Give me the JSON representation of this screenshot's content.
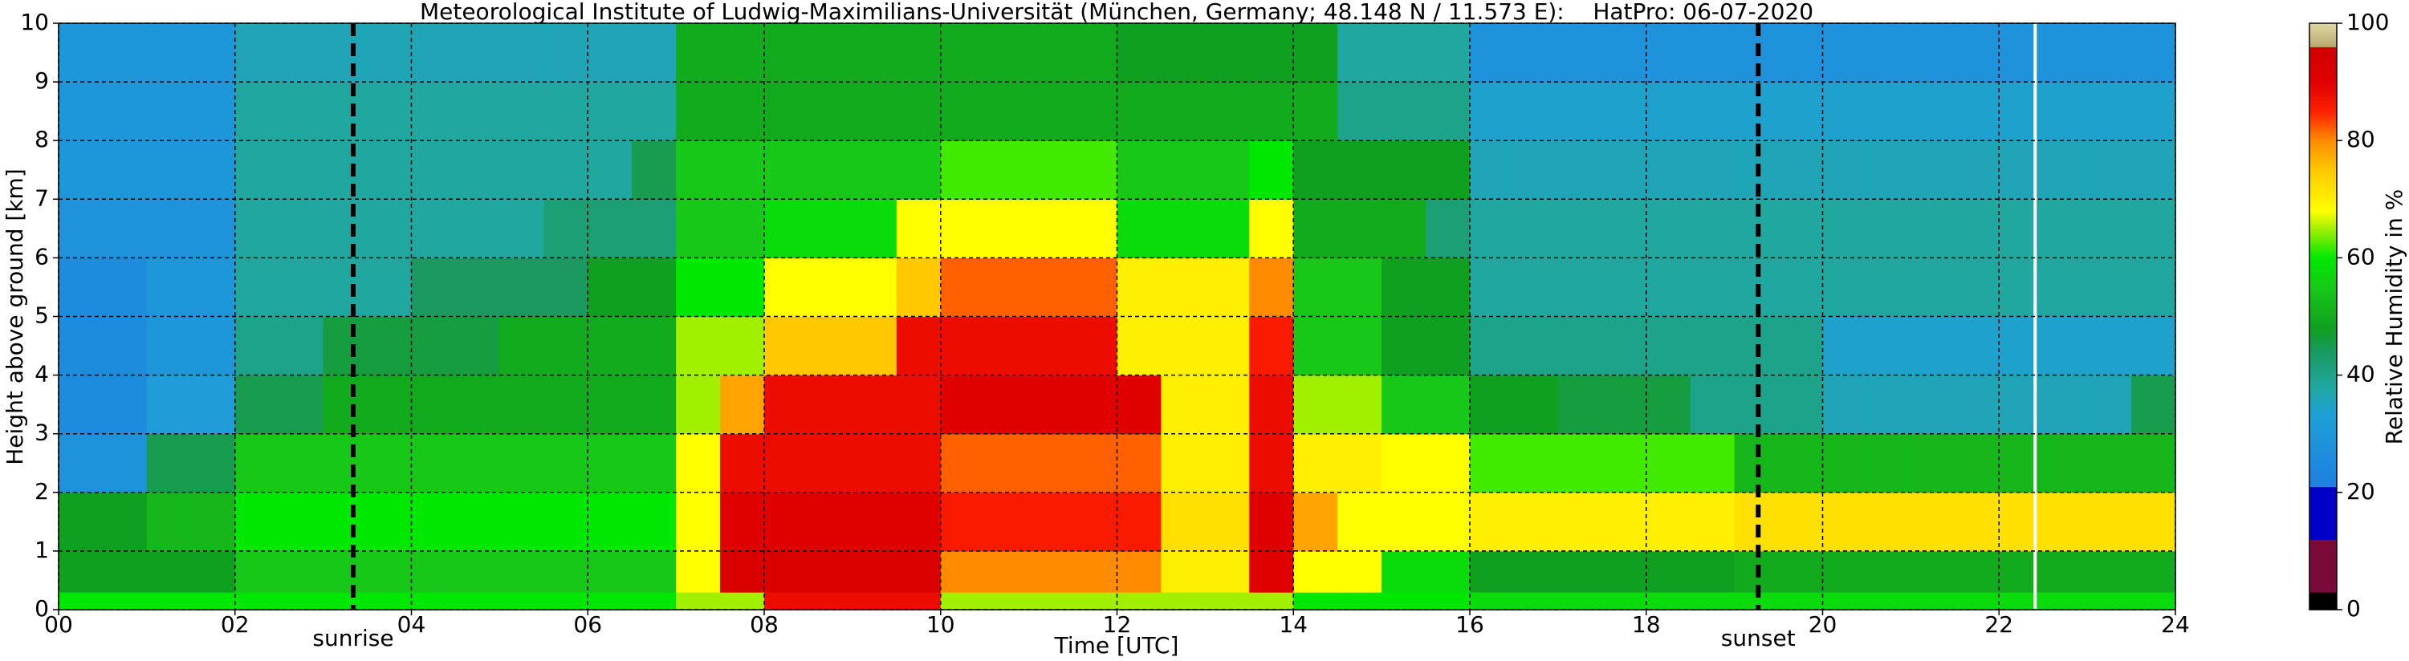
{
  "chart_data": {
    "type": "heatmap",
    "title": "Meteorological Institute of Ludwig-Maximilians-Universität (München, Germany; 48.148 N / 11.573 E):    HatPro: 06-07-2020",
    "xlabel": "Time [UTC]",
    "ylabel": "Height above ground [km]",
    "colorbar_label": "Relative Humidity in %",
    "xlim": [
      0,
      24
    ],
    "ylim": [
      0,
      10
    ],
    "clim": [
      0,
      100
    ],
    "xticks": [
      {
        "value": 0,
        "label": "00"
      },
      {
        "value": 2,
        "label": "02"
      },
      {
        "value": 4,
        "label": "04"
      },
      {
        "value": 6,
        "label": "06"
      },
      {
        "value": 8,
        "label": "08"
      },
      10,
      12,
      14,
      16,
      18,
      20,
      22,
      24
    ],
    "yticks": [
      0,
      1,
      2,
      3,
      4,
      5,
      6,
      7,
      8,
      9,
      10
    ],
    "cticks": [
      0,
      20,
      40,
      60,
      80,
      100
    ],
    "grid": true,
    "annotations": [
      {
        "text": "sunrise",
        "x": 3.34
      },
      {
        "text": "sunset",
        "x": 19.27
      }
    ],
    "gaps": [
      22.41
    ],
    "colorscale": [
      [
        0,
        "#000000"
      ],
      [
        3,
        "#000000"
      ],
      [
        3.01,
        "#7a0a3a"
      ],
      [
        12,
        "#7a0a3a"
      ],
      [
        12.01,
        "#0000c8"
      ],
      [
        21,
        "#0000c8"
      ],
      [
        21.01,
        "#1e7ee0"
      ],
      [
        33,
        "#1ea0d8"
      ],
      [
        38,
        "#20a8a0"
      ],
      [
        44,
        "#1a9a60"
      ],
      [
        48,
        "#10a020"
      ],
      [
        55,
        "#18c818"
      ],
      [
        60,
        "#00e800"
      ],
      [
        65,
        "#a0f000"
      ],
      [
        68,
        "#ffff00"
      ],
      [
        75,
        "#ffc800"
      ],
      [
        80,
        "#ff8c00"
      ],
      [
        85,
        "#ff2000"
      ],
      [
        90,
        "#e00000"
      ],
      [
        96,
        "#d00000"
      ],
      [
        96.01,
        "#b8a870"
      ],
      [
        100,
        "#e0d8a0"
      ]
    ],
    "x_bins": [
      0,
      0.5,
      1,
      1.5,
      2,
      2.5,
      3,
      3.5,
      4,
      4.5,
      5,
      5.5,
      6,
      6.5,
      7,
      7.5,
      8,
      8.5,
      9,
      9.5,
      10,
      10.5,
      11,
      11.5,
      12,
      12.5,
      13,
      13.5,
      14,
      14.5,
      15,
      15.5,
      16,
      16.5,
      17,
      17.5,
      18,
      18.5,
      19,
      19.5,
      20,
      20.5,
      21,
      21.5,
      22,
      22.5,
      23,
      23.5,
      24
    ],
    "y_bins": [
      0,
      0.3,
      1,
      2,
      3,
      4,
      5,
      6,
      7,
      8,
      9,
      10
    ],
    "z": [
      [
        60,
        60,
        60,
        60,
        60,
        60,
        60,
        60,
        60,
        60,
        60,
        60,
        60,
        60,
        65,
        65,
        88,
        88,
        88,
        88,
        65,
        65,
        65,
        65,
        65,
        65,
        65,
        65,
        60,
        60,
        60,
        60,
        58,
        58,
        58,
        58,
        58,
        58,
        58,
        58,
        58,
        58,
        58,
        58,
        58,
        58,
        58,
        58
      ],
      [
        48,
        48,
        48,
        48,
        55,
        55,
        55,
        55,
        55,
        55,
        55,
        55,
        55,
        55,
        68,
        92,
        92,
        92,
        92,
        92,
        80,
        80,
        80,
        80,
        80,
        70,
        70,
        90,
        68,
        68,
        58,
        58,
        48,
        48,
        48,
        48,
        48,
        48,
        50,
        50,
        50,
        50,
        50,
        50,
        50,
        50,
        50,
        50
      ],
      [
        48,
        48,
        52,
        52,
        60,
        60,
        60,
        60,
        60,
        60,
        60,
        60,
        60,
        60,
        68,
        90,
        90,
        90,
        90,
        90,
        86,
        86,
        86,
        86,
        86,
        72,
        72,
        90,
        78,
        68,
        68,
        68,
        70,
        70,
        70,
        70,
        70,
        70,
        72,
        72,
        72,
        72,
        72,
        72,
        72,
        72,
        72,
        72
      ],
      [
        28,
        28,
        45,
        45,
        55,
        55,
        55,
        55,
        55,
        55,
        55,
        55,
        55,
        55,
        68,
        88,
        88,
        88,
        88,
        88,
        82,
        82,
        82,
        82,
        82,
        70,
        70,
        88,
        70,
        70,
        68,
        68,
        62,
        62,
        62,
        62,
        62,
        62,
        52,
        52,
        52,
        52,
        52,
        52,
        52,
        52,
        52,
        52
      ],
      [
        26,
        26,
        32,
        32,
        45,
        45,
        50,
        50,
        50,
        50,
        50,
        50,
        50,
        50,
        65,
        78,
        88,
        88,
        88,
        88,
        90,
        90,
        90,
        90,
        90,
        70,
        70,
        88,
        65,
        65,
        55,
        55,
        48,
        48,
        46,
        46,
        46,
        40,
        40,
        40,
        36,
        36,
        36,
        36,
        36,
        36,
        36,
        45
      ],
      [
        26,
        26,
        30,
        30,
        40,
        40,
        46,
        46,
        46,
        46,
        50,
        50,
        50,
        50,
        65,
        65,
        75,
        75,
        75,
        88,
        88,
        88,
        88,
        88,
        70,
        70,
        70,
        86,
        55,
        55,
        48,
        48,
        40,
        40,
        40,
        40,
        40,
        40,
        40,
        40,
        34,
        34,
        34,
        34,
        34,
        34,
        34,
        34
      ],
      [
        26,
        26,
        30,
        30,
        38,
        38,
        38,
        38,
        44,
        44,
        44,
        44,
        48,
        48,
        60,
        60,
        68,
        68,
        68,
        75,
        82,
        82,
        82,
        82,
        70,
        70,
        70,
        80,
        55,
        55,
        48,
        48,
        38,
        38,
        38,
        38,
        38,
        38,
        38,
        38,
        38,
        38,
        38,
        38,
        38,
        38,
        38,
        38
      ],
      [
        28,
        28,
        28,
        28,
        38,
        38,
        38,
        38,
        38,
        38,
        38,
        42,
        42,
        42,
        55,
        55,
        58,
        58,
        58,
        68,
        68,
        68,
        68,
        68,
        58,
        58,
        58,
        68,
        50,
        50,
        50,
        42,
        38,
        38,
        38,
        38,
        38,
        38,
        38,
        38,
        38,
        38,
        38,
        38,
        38,
        38,
        38,
        38
      ],
      [
        30,
        30,
        30,
        30,
        38,
        38,
        38,
        38,
        38,
        38,
        38,
        38,
        38,
        45,
        55,
        55,
        55,
        55,
        55,
        55,
        62,
        62,
        62,
        62,
        55,
        55,
        55,
        60,
        48,
        48,
        48,
        48,
        36,
        36,
        36,
        36,
        36,
        36,
        36,
        36,
        36,
        36,
        36,
        36,
        36,
        36,
        36,
        36
      ],
      [
        30,
        30,
        30,
        30,
        38,
        38,
        38,
        38,
        38,
        38,
        38,
        38,
        38,
        38,
        50,
        50,
        50,
        50,
        50,
        50,
        50,
        50,
        50,
        50,
        50,
        50,
        50,
        50,
        50,
        40,
        40,
        40,
        34,
        34,
        34,
        34,
        34,
        34,
        34,
        34,
        34,
        34,
        34,
        34,
        34,
        34,
        34,
        34
      ],
      [
        30,
        30,
        30,
        30,
        36,
        36,
        36,
        36,
        36,
        36,
        36,
        36,
        36,
        36,
        50,
        50,
        50,
        50,
        50,
        50,
        50,
        50,
        50,
        50,
        48,
        48,
        48,
        48,
        48,
        38,
        38,
        38,
        28,
        28,
        28,
        28,
        28,
        28,
        28,
        28,
        28,
        28,
        28,
        28,
        28,
        28,
        28,
        28
      ]
    ]
  }
}
